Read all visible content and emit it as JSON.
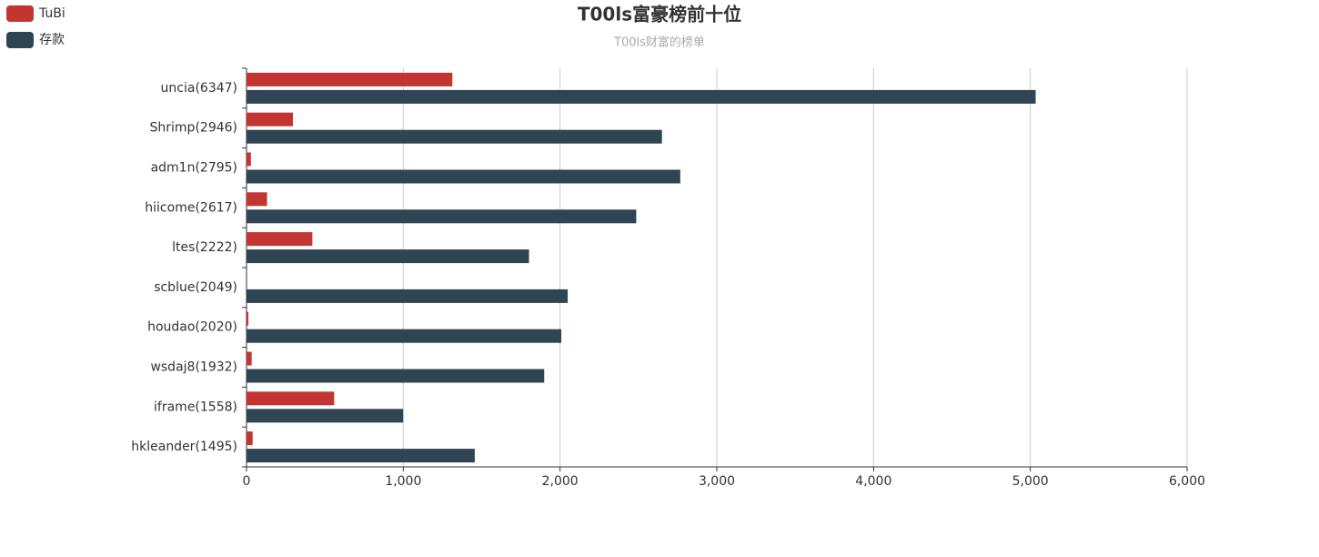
{
  "chart_data": {
    "type": "hbar",
    "title": "T00ls富豪榜前十位",
    "subtitle": "T00ls财富的榜单",
    "categories": [
      "uncia(6347)",
      "Shrimp(2946)",
      "adm1n(2795)",
      "hiicome(2617)",
      "ltes(2222)",
      "scblue(2049)",
      "houdao(2020)",
      "wsdaj8(1932)",
      "iframe(1558)",
      "hkleander(1495)"
    ],
    "series": [
      {
        "name": "TuBi",
        "color": "#c23531",
        "values": [
          1313,
          296,
          28,
          131,
          420,
          0,
          12,
          33,
          559,
          39
        ]
      },
      {
        "name": "存款",
        "color": "#2f4554",
        "values": [
          5034,
          2650,
          2767,
          2486,
          1802,
          2049,
          2008,
          1899,
          999,
          1456
        ]
      }
    ],
    "xlim": [
      0,
      6000
    ],
    "xticks": [
      0,
      {
        "value": 1000,
        "label": "1,000"
      },
      {
        "value": 2000,
        "label": "2,000"
      },
      {
        "value": 3000,
        "label": "3,000"
      },
      {
        "value": 4000,
        "label": "4,000"
      },
      {
        "value": 5000,
        "label": "5,000"
      },
      {
        "value": 6000,
        "label": "6,000"
      }
    ],
    "grid": true,
    "legend": "top-left"
  }
}
